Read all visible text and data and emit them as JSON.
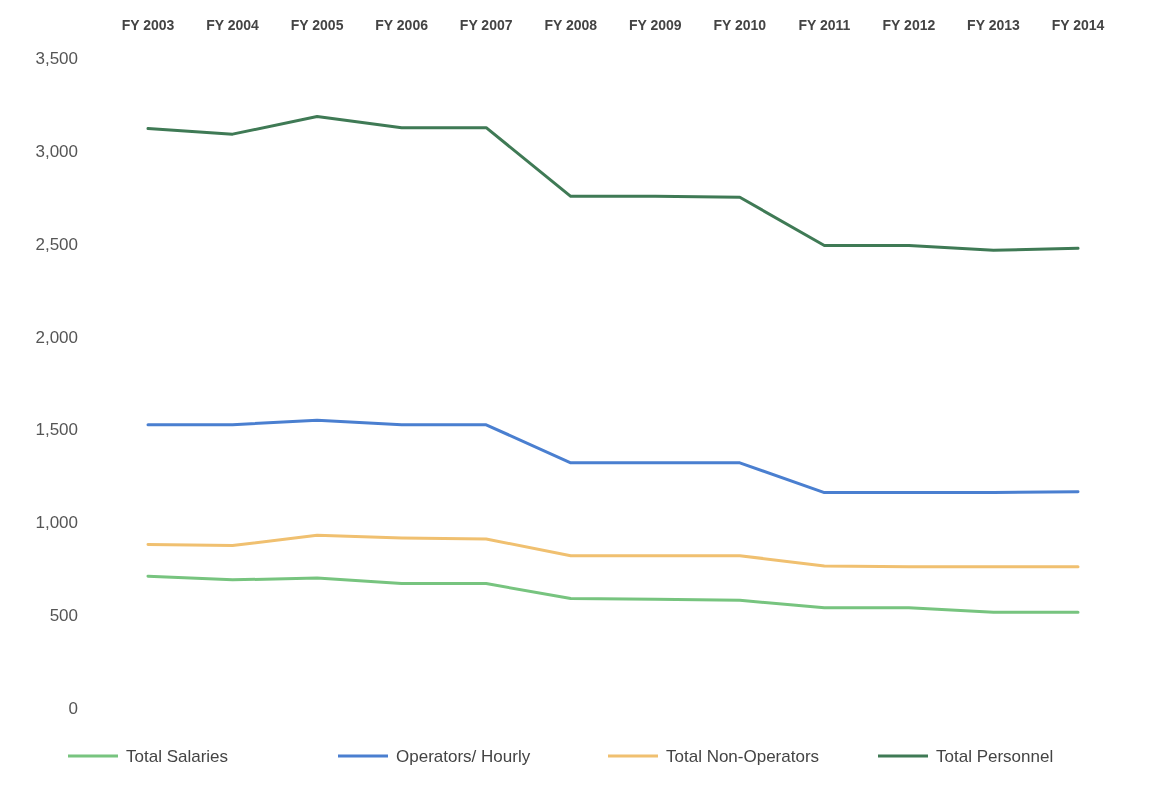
{
  "chart_data": {
    "type": "line",
    "categories": [
      "FY 2003",
      "FY 2004",
      "FY 2005",
      "FY 2006",
      "FY 2007",
      "FY 2008",
      "FY 2009",
      "FY 2010",
      "FY 2011",
      "FY 2012",
      "FY 2013",
      "FY 2014"
    ],
    "ylim": [
      0,
      3500
    ],
    "yticks": [
      {
        "value": 0,
        "label": "0"
      },
      {
        "value": 500,
        "label": "500"
      },
      {
        "value": 1000,
        "label": "1,000"
      },
      {
        "value": 1500,
        "label": "1,500"
      },
      {
        "value": 2000,
        "label": "2,000"
      },
      {
        "value": 2500,
        "label": "2,500"
      },
      {
        "value": 3000,
        "label": "3,000"
      },
      {
        "value": 3500,
        "label": "3,500"
      }
    ],
    "grid": false,
    "legend": "bottom",
    "marker": "none",
    "line_style": "solid",
    "series": [
      {
        "name": "Total Salaries",
        "color": "#77c47f",
        "values": [
          710,
          690,
          700,
          670,
          670,
          590,
          585,
          580,
          540,
          540,
          515,
          515
        ]
      },
      {
        "name": "Operators/ Hourly",
        "color": "#4a7fd0",
        "values": [
          1525,
          1525,
          1550,
          1525,
          1525,
          1320,
          1320,
          1320,
          1160,
          1160,
          1160,
          1165
        ]
      },
      {
        "name": "Total Non-Operators",
        "color": "#f0c070",
        "values": [
          880,
          875,
          930,
          915,
          910,
          820,
          820,
          820,
          765,
          760,
          760,
          760
        ]
      },
      {
        "name": "Total Personnel",
        "color": "#3f7a55",
        "values": [
          3120,
          3090,
          3185,
          3125,
          3125,
          2755,
          2755,
          2750,
          2490,
          2490,
          2465,
          2475
        ]
      }
    ]
  }
}
